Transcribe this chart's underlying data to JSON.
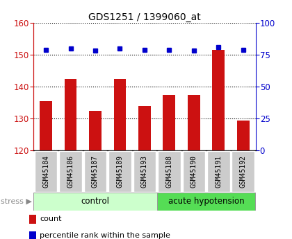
{
  "title": "GDS1251 / 1399060_at",
  "samples": [
    "GSM45184",
    "GSM45186",
    "GSM45187",
    "GSM45189",
    "GSM45193",
    "GSM45188",
    "GSM45190",
    "GSM45191",
    "GSM45192"
  ],
  "bar_values": [
    135.5,
    142.5,
    132.5,
    142.5,
    134.0,
    137.5,
    137.5,
    151.5,
    129.5
  ],
  "percentile_values": [
    79,
    80,
    78,
    80,
    79,
    79,
    78,
    81,
    79
  ],
  "bar_color": "#cc1111",
  "percentile_color": "#0000cc",
  "ylim_left": [
    120,
    160
  ],
  "ylim_right": [
    0,
    100
  ],
  "yticks_left": [
    120,
    130,
    140,
    150,
    160
  ],
  "yticks_right": [
    0,
    25,
    50,
    75,
    100
  ],
  "n_control": 5,
  "n_acute": 4,
  "control_label": "control",
  "acute_label": "acute hypotension",
  "stress_label": "stress",
  "legend_count": "count",
  "legend_pct": "percentile rank within the sample",
  "control_bg": "#ccffcc",
  "acute_bg": "#55dd55",
  "tick_label_bg": "#cccccc",
  "bar_width": 0.5,
  "bg_color": "#ffffff"
}
